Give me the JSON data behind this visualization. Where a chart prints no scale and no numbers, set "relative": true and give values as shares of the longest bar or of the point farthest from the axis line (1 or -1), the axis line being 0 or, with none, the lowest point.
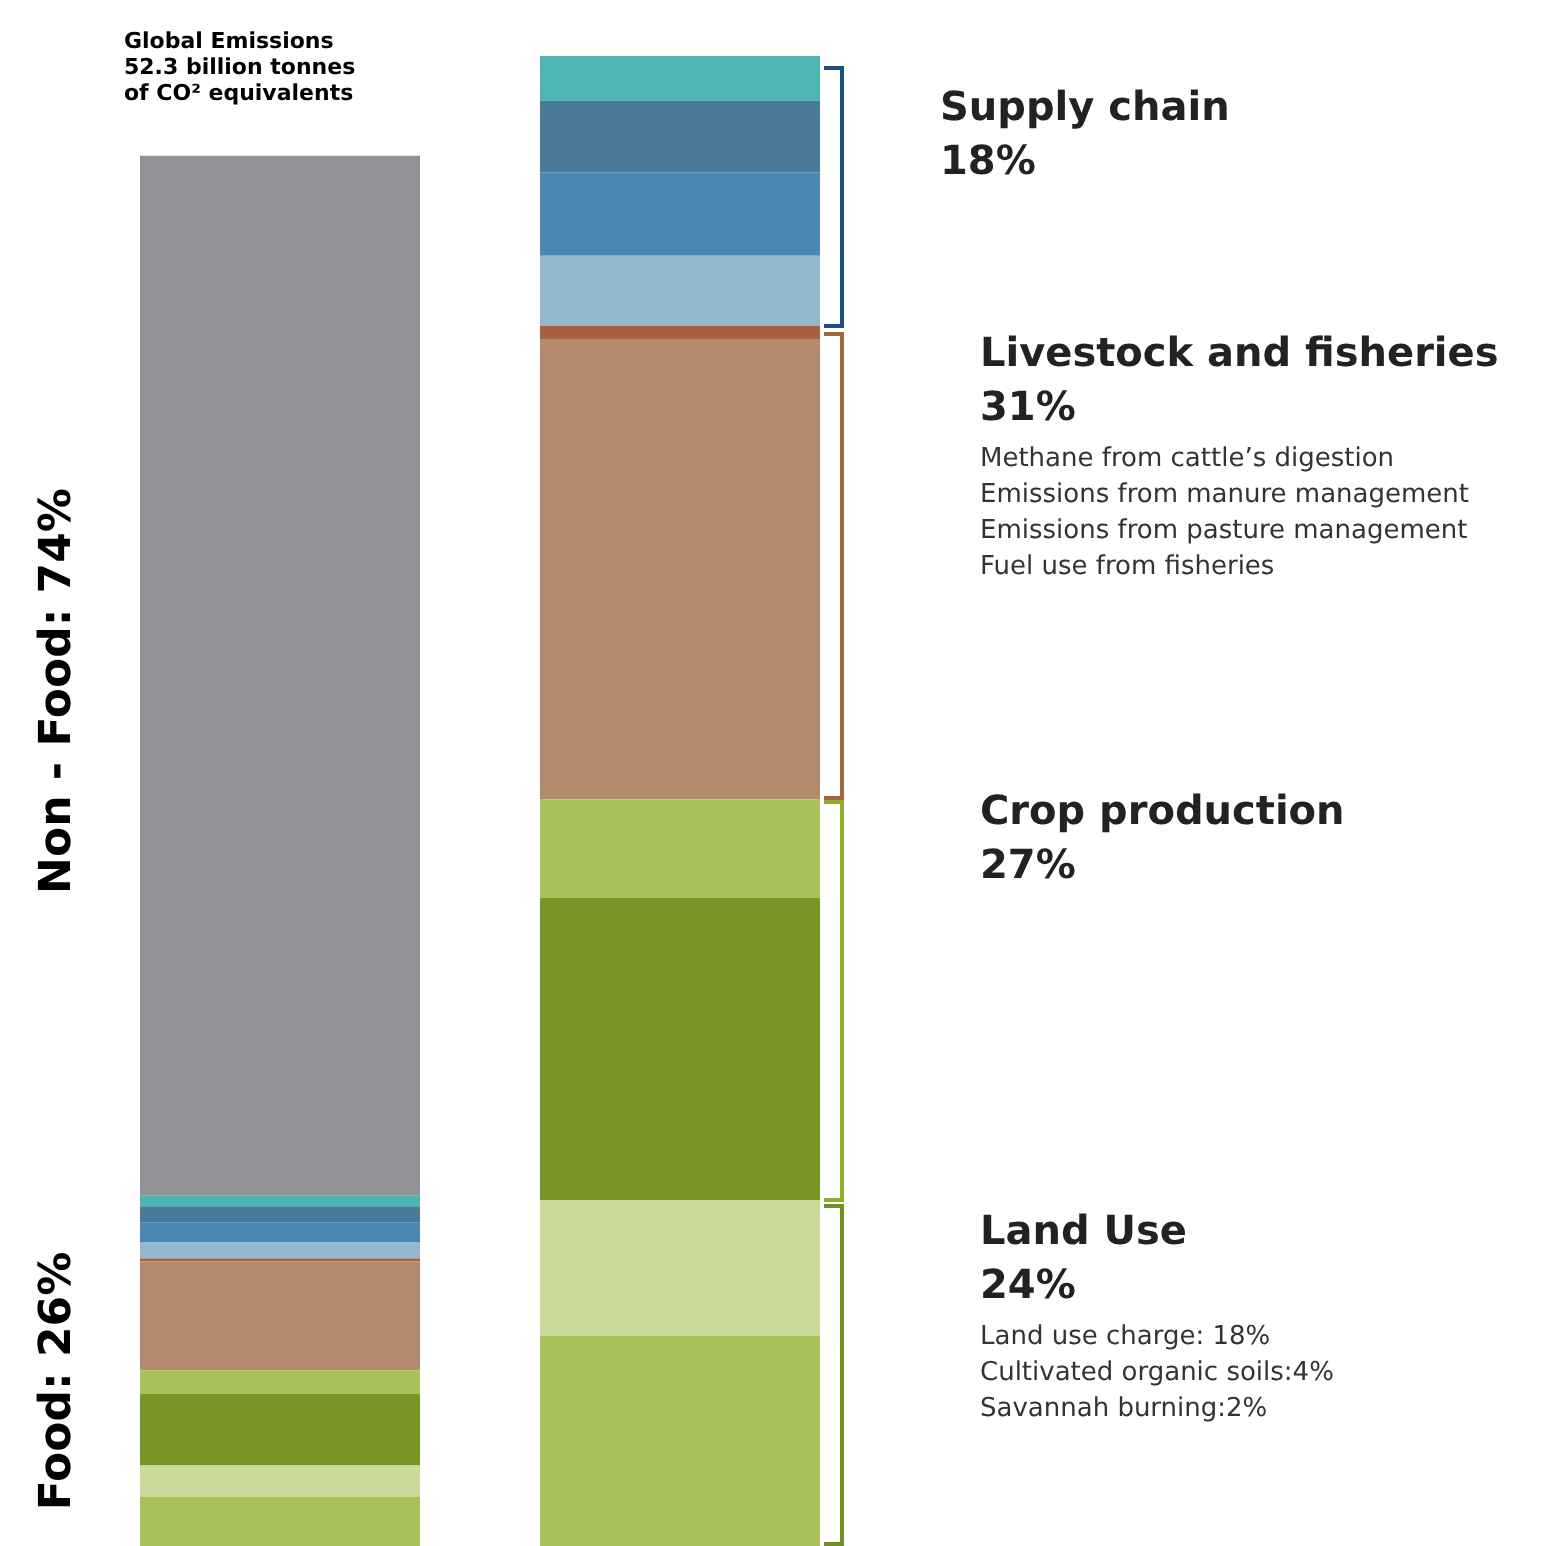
{
  "chart_data": {
    "type": "bar",
    "stacked": true,
    "relative": true,
    "title": "Global Emissions\n52.3 billion tonnes\nof CO² equivalents",
    "categories": [
      null,
      null
    ],
    "series": [
      {
        "color": "#a8c25a",
        "values": [
          0.033,
          0.141
        ]
      },
      {
        "color": "#c9da9a",
        "values": [
          0.021,
          0.091
        ]
      },
      {
        "color": "#779626",
        "values": [
          0.048,
          0.203
        ]
      },
      {
        "color": "#a8c25a",
        "values": [
          0.016,
          0.066
        ]
      },
      {
        "color": "#b38a6c",
        "values": [
          0.073,
          0.309
        ]
      },
      {
        "color": "#a8603e",
        "values": [
          0.002,
          0.009
        ]
      },
      {
        "color": "#93b9cf",
        "values": [
          0.011,
          0.047
        ]
      },
      {
        "color": "#4a88b4",
        "values": [
          0.013,
          0.056
        ]
      },
      {
        "color": "#4a7a9a",
        "values": [
          0.011,
          0.048
        ]
      },
      {
        "color": "#4db6b3",
        "values": [
          0.007,
          0.03
        ]
      },
      {
        "color": "#929396",
        "values": [
          0.698,
          0
        ]
      }
    ],
    "annotations": [
      "Non - Food: 74%",
      "Food: 26%",
      "Supply chain\n18%",
      "Livestock and fisheries\n31%",
      "Methane from cattle’s digestion",
      "Emissions from manure management",
      "Emissions from pasture management",
      "Fuel use from fisheries",
      "Crop production\n27%",
      "Land Use\n24%",
      "Land use charge: 18%",
      "Cultivated organic soils:4%",
      "Savannah burning:2%"
    ]
  }
}
